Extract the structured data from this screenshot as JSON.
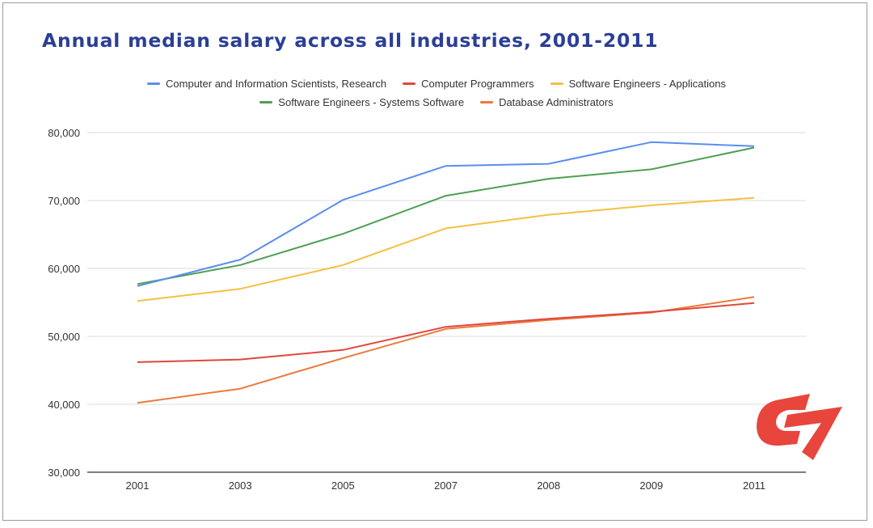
{
  "chart_data": {
    "type": "line",
    "title": "Annual median salary across all industries, 2001-2011",
    "xlabel": "",
    "ylabel": "",
    "categories": [
      "2001",
      "2003",
      "2005",
      "2007",
      "2008",
      "2009",
      "2011"
    ],
    "ylim": [
      30000,
      80000
    ],
    "yticks": [
      "30,000",
      "40,000",
      "50,000",
      "60,000",
      "70,000",
      "80,000"
    ],
    "ytick_values": [
      30000,
      40000,
      50000,
      60000,
      70000,
      80000
    ],
    "grid": true,
    "legend_position": "top",
    "series": [
      {
        "name": "Computer and Information Scientists, Research",
        "color": "#5b8def",
        "values": [
          57400,
          61300,
          70100,
          75100,
          75400,
          78600,
          78000
        ]
      },
      {
        "name": "Computer Programmers",
        "color": "#e0473e",
        "values": [
          46200,
          46600,
          48000,
          51400,
          52600,
          53600,
          54900
        ]
      },
      {
        "name": "Software Engineers - Applications",
        "color": "#f4c042",
        "values": [
          55200,
          57000,
          60500,
          65900,
          67900,
          69300,
          70400
        ]
      },
      {
        "name": "Software Engineers - Systems Software",
        "color": "#4e9f53",
        "values": [
          57700,
          60500,
          65100,
          70700,
          73200,
          74600,
          77800
        ]
      },
      {
        "name": "Database Administrators",
        "color": "#ec7a3b",
        "values": [
          40200,
          42300,
          46800,
          51100,
          52400,
          53500,
          55800
        ]
      }
    ]
  },
  "logo": {
    "name": "brand-logo",
    "color": "#e8453c"
  }
}
